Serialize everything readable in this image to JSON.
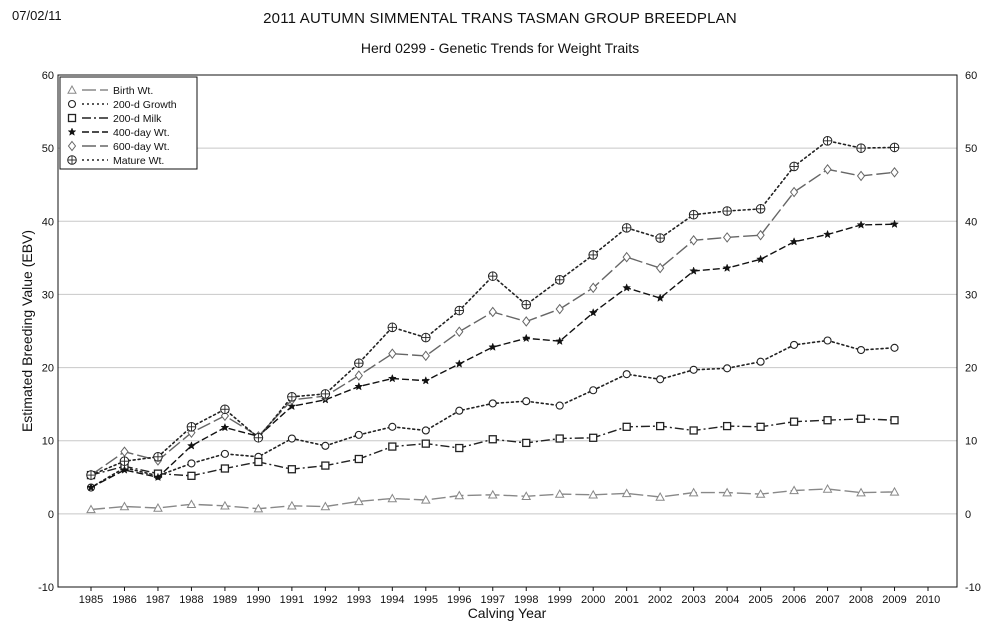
{
  "header": {
    "date": "07/02/11",
    "title": "2011 AUTUMN SIMMENTAL TRANS TASMAN GROUP BREEDPLAN",
    "subtitle": "Herd 0299 - Genetic Trends for Weight Traits"
  },
  "chart_data": {
    "type": "line",
    "title": "2011 AUTUMN SIMMENTAL TRANS TASMAN GROUP BREEDPLAN",
    "subtitle": "Herd 0299 - Genetic Trends for Weight Traits",
    "xlabel": "Calving Year",
    "ylabel": "Estimated Breeding Value (EBV)",
    "ylim": [
      -10,
      60
    ],
    "y_ticks": [
      -10,
      0,
      10,
      20,
      30,
      40,
      50,
      60
    ],
    "x_ticks": [
      1985,
      1986,
      1987,
      1988,
      1989,
      1990,
      1991,
      1992,
      1993,
      1994,
      1995,
      1996,
      1997,
      1998,
      1999,
      2000,
      2001,
      2002,
      2003,
      2004,
      2005,
      2006,
      2007,
      2008,
      2009,
      2010
    ],
    "x": [
      1985,
      1986,
      1987,
      1988,
      1989,
      1990,
      1991,
      1992,
      1993,
      1994,
      1995,
      1996,
      1997,
      1998,
      1999,
      2000,
      2001,
      2002,
      2003,
      2004,
      2005,
      2006,
      2007,
      2008,
      2009
    ],
    "grid": true,
    "legend_position": "top-left",
    "series": [
      {
        "name": "Birth Wt.",
        "marker": "triangle",
        "dash": "longdash",
        "color": "#888888",
        "values": [
          0.6,
          1.0,
          0.8,
          1.3,
          1.1,
          0.7,
          1.1,
          1.0,
          1.7,
          2.1,
          1.9,
          2.5,
          2.6,
          2.4,
          2.7,
          2.6,
          2.8,
          2.3,
          2.9,
          2.9,
          2.7,
          3.2,
          3.4,
          2.9,
          3.0
        ]
      },
      {
        "name": "200-d Growth",
        "marker": "circle",
        "dash": "dotted",
        "color": "#222222",
        "values": [
          3.6,
          6.3,
          5.2,
          6.9,
          8.2,
          7.8,
          10.3,
          9.3,
          10.8,
          11.9,
          11.4,
          14.1,
          15.1,
          15.4,
          14.8,
          16.9,
          19.1,
          18.4,
          19.7,
          19.9,
          20.8,
          23.1,
          23.7,
          22.4,
          22.7
        ]
      },
      {
        "name": "200-d Milk",
        "marker": "square",
        "dash": "dashdot",
        "color": "#222222",
        "values": [
          5.3,
          6.5,
          5.5,
          5.2,
          6.2,
          7.1,
          6.1,
          6.6,
          7.5,
          9.2,
          9.6,
          9.0,
          10.2,
          9.7,
          10.3,
          10.4,
          11.9,
          12.0,
          11.4,
          12.0,
          11.9,
          12.6,
          12.8,
          13.0,
          12.8
        ]
      },
      {
        "name": "400-day Wt.",
        "marker": "star",
        "dash": "dashed",
        "color": "#111111",
        "values": [
          3.6,
          6.0,
          5.0,
          9.3,
          11.8,
          10.6,
          14.7,
          15.6,
          17.4,
          18.5,
          18.2,
          20.5,
          22.8,
          24.0,
          23.6,
          27.5,
          30.9,
          29.5,
          33.2,
          33.6,
          34.8,
          37.2,
          38.2,
          39.5,
          39.6
        ]
      },
      {
        "name": "600-day Wt.",
        "marker": "diamond",
        "dash": "longdash",
        "color": "#666666",
        "values": [
          5.3,
          8.5,
          7.3,
          11.1,
          13.4,
          10.6,
          15.6,
          16.1,
          18.9,
          21.9,
          21.6,
          24.9,
          27.6,
          26.3,
          28.0,
          30.9,
          35.1,
          33.6,
          37.4,
          37.8,
          38.1,
          44.0,
          47.1,
          46.2,
          46.7
        ]
      },
      {
        "name": "Mature Wt.",
        "marker": "circleplus",
        "dash": "dotted",
        "color": "#222222",
        "values": [
          5.3,
          7.2,
          7.8,
          11.9,
          14.3,
          10.4,
          16.0,
          16.4,
          20.6,
          25.5,
          24.1,
          27.8,
          32.5,
          28.6,
          32.0,
          35.4,
          39.1,
          37.7,
          40.9,
          41.4,
          41.7,
          47.5,
          51.0,
          50.0,
          50.1
        ]
      }
    ]
  }
}
